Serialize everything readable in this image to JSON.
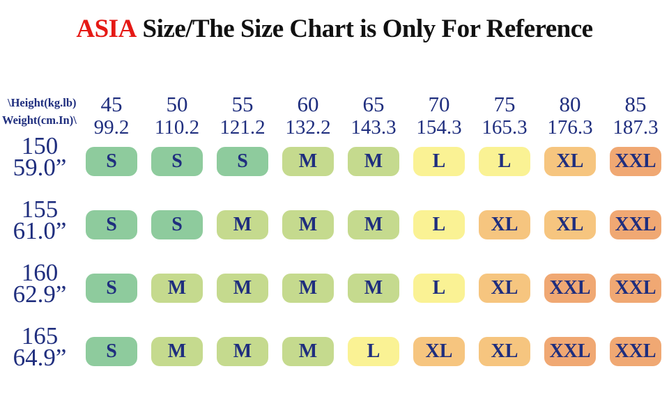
{
  "title": {
    "brand": "ASIA",
    "rest": "Size/The Size Chart is Only For Reference"
  },
  "corner": {
    "line1": "\\Height(kg.lb)",
    "line2": "Weight(cm.In)\\"
  },
  "columns": [
    {
      "kg": "45",
      "lb": "99.2"
    },
    {
      "kg": "50",
      "lb": "110.2"
    },
    {
      "kg": "55",
      "lb": "121.2"
    },
    {
      "kg": "60",
      "lb": "132.2"
    },
    {
      "kg": "65",
      "lb": "143.3"
    },
    {
      "kg": "70",
      "lb": "154.3"
    },
    {
      "kg": "75",
      "lb": "165.3"
    },
    {
      "kg": "80",
      "lb": "176.3"
    },
    {
      "kg": "85",
      "lb": "187.3"
    }
  ],
  "rows": [
    {
      "cm": "150",
      "in": "59.0”",
      "cells": [
        "S",
        "S",
        "S",
        "M",
        "M",
        "L",
        "L",
        "XL",
        "XXL"
      ]
    },
    {
      "cm": "155",
      "in": "61.0”",
      "cells": [
        "S",
        "S",
        "M",
        "M",
        "M",
        "L",
        "XL",
        "XL",
        "XXL"
      ]
    },
    {
      "cm": "160",
      "in": "62.9”",
      "cells": [
        "S",
        "M",
        "M",
        "M",
        "M",
        "L",
        "XL",
        "XXL",
        "XXL"
      ]
    },
    {
      "cm": "165",
      "in": "64.9”",
      "cells": [
        "S",
        "M",
        "M",
        "M",
        "L",
        "XL",
        "XL",
        "XXL",
        "XXL"
      ]
    }
  ],
  "size_colors": {
    "S": "#8ecb9d",
    "M": "#c5da8e",
    "L": "#faf294",
    "XL": "#f6c57f",
    "XXL": "#f0a873"
  },
  "text_colors": {
    "navy": "#1f2e7e",
    "title_red": "#e51915",
    "title_black": "#111111"
  },
  "chart_data": {
    "type": "table",
    "title": "ASIA Size/The Size Chart is Only For Reference",
    "corner_labels": [
      "\\Height(kg.lb)",
      "Weight(cm.In)\\"
    ],
    "weight_kg": [
      45,
      50,
      55,
      60,
      65,
      70,
      75,
      80,
      85
    ],
    "weight_lb": [
      99.2,
      110.2,
      121.2,
      132.2,
      143.3,
      154.3,
      165.3,
      176.3,
      187.3
    ],
    "height_cm": [
      150,
      155,
      160,
      165
    ],
    "height_in": [
      "59.0”",
      "61.0”",
      "62.9”",
      "64.9”"
    ],
    "values": [
      [
        "S",
        "S",
        "S",
        "M",
        "M",
        "L",
        "L",
        "XL",
        "XXL"
      ],
      [
        "S",
        "S",
        "M",
        "M",
        "M",
        "L",
        "XL",
        "XL",
        "XXL"
      ],
      [
        "S",
        "M",
        "M",
        "M",
        "M",
        "L",
        "XL",
        "XXL",
        "XXL"
      ],
      [
        "S",
        "M",
        "M",
        "M",
        "L",
        "XL",
        "XL",
        "XXL",
        "XXL"
      ]
    ],
    "cell_colors": {
      "S": "#8ecb9d",
      "M": "#c5da8e",
      "L": "#faf294",
      "XL": "#f6c57f",
      "XXL": "#f0a873"
    }
  }
}
